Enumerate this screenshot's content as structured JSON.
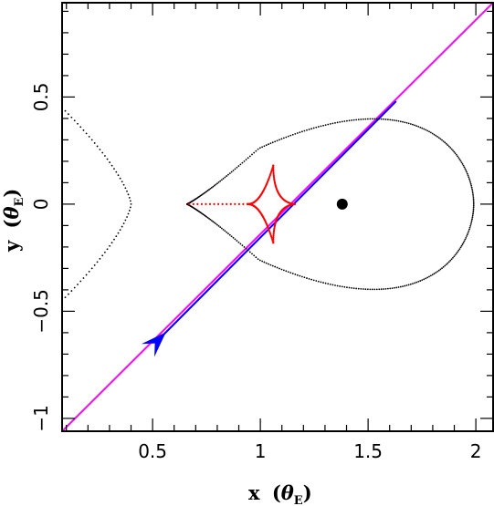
{
  "chart_data": {
    "type": "scatter",
    "title": "",
    "xlabel_main": "x",
    "xlabel_unit": "θ",
    "xlabel_sub": "E",
    "ylabel_main": "y",
    "ylabel_unit": "θ",
    "ylabel_sub": "E",
    "xlim": [
      0.08,
      2.08
    ],
    "ylim": [
      -1.06,
      0.94
    ],
    "grid": false,
    "xticks": [
      0.5,
      1,
      1.5,
      2
    ],
    "xtick_labels": [
      "0.5",
      "1",
      "1.5",
      "2"
    ],
    "yticks": [
      -1,
      -0.5,
      0,
      0.5
    ],
    "ytick_labels": [
      "−1",
      "−0.5",
      "0",
      "0.5"
    ],
    "critical_curve_outer": {
      "color": "#000000",
      "x_min": 0.63,
      "x_max": 1.96,
      "center_x": 1.42,
      "half_height": 0.52
    },
    "critical_curve_inner": {
      "color": "#000000",
      "tip_x": 0.4,
      "edge_x": 0.08,
      "edge_y": 0.45
    },
    "caustic": {
      "color": "#ff0000",
      "cusps": [
        [
          1.16,
          0.0
        ],
        [
          1.06,
          0.18
        ],
        [
          1.06,
          -0.18
        ]
      ],
      "tail_start_x": 0.67,
      "tail_end_x": 0.94
    },
    "companion": {
      "x": 1.38,
      "y": 0.0,
      "color": "#000000"
    },
    "source_trajectory": {
      "color": "#ff00ff",
      "x0": 0.08,
      "y0": -1.06,
      "x1": 2.08,
      "y1": 0.94
    },
    "model_trajectory": {
      "color": "#0000ff",
      "x0": 0.55,
      "y0": -0.61,
      "x1": 1.63,
      "y1": 0.48
    },
    "arrow": {
      "x": 0.55,
      "y": -0.61,
      "color": "#0000ff"
    }
  }
}
